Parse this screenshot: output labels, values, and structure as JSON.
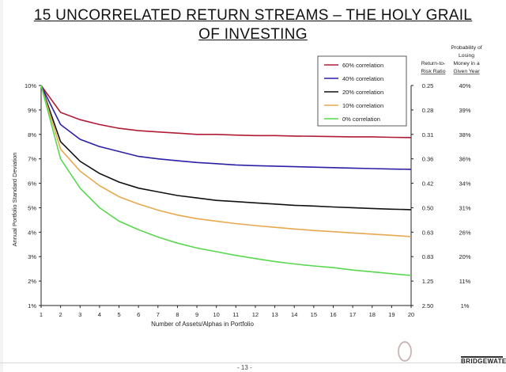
{
  "title_line1": "15 UNCORRELATED RETURN STREAMS – THE HOLY GRAIL",
  "title_line2": "OF INVESTING",
  "footer": {
    "page": "- 13 -",
    "logo": "BRIDGEWATER"
  },
  "colors": {
    "60": "#b01c35",
    "40": "#2c1fa8",
    "20": "#111111",
    "10": "#e7a84f",
    "0": "#59d84f"
  },
  "right_headers": {
    "ratio": [
      "Return-to-",
      "Risk Ratio"
    ],
    "prob": [
      "Probability of",
      "Losing",
      "Money in a",
      "Given Year"
    ]
  },
  "chart_data": {
    "type": "line",
    "xlabel": "Number of Assets/Alphas in Portfolio",
    "ylabel": "Annual Portfolio Standard Deviation",
    "xlim": [
      1,
      20
    ],
    "ylim": [
      1,
      10
    ],
    "x": [
      1,
      2,
      3,
      4,
      5,
      6,
      7,
      8,
      9,
      10,
      11,
      12,
      13,
      14,
      15,
      16,
      17,
      18,
      19,
      20
    ],
    "y_ticks": [
      "1%",
      "2%",
      "3%",
      "4%",
      "5%",
      "6%",
      "7%",
      "8%",
      "9%",
      "10%"
    ],
    "series": [
      {
        "name": "60% correlation",
        "color": "#b01c35",
        "values": [
          10,
          8.9,
          8.6,
          8.4,
          8.25,
          8.15,
          8.1,
          8.05,
          8.0,
          8.0,
          7.97,
          7.95,
          7.95,
          7.93,
          7.92,
          7.91,
          7.9,
          7.9,
          7.88,
          7.87
        ]
      },
      {
        "name": "40% correlation",
        "color": "#2c1fa8",
        "values": [
          10,
          8.4,
          7.8,
          7.5,
          7.3,
          7.1,
          7.0,
          6.92,
          6.85,
          6.8,
          6.75,
          6.72,
          6.7,
          6.68,
          6.66,
          6.64,
          6.62,
          6.6,
          6.58,
          6.57
        ]
      },
      {
        "name": "20% correlation",
        "color": "#111111",
        "values": [
          10,
          7.7,
          6.9,
          6.4,
          6.05,
          5.8,
          5.65,
          5.5,
          5.4,
          5.3,
          5.25,
          5.2,
          5.15,
          5.1,
          5.07,
          5.03,
          5.0,
          4.97,
          4.94,
          4.92
        ]
      },
      {
        "name": "10% correlation",
        "color": "#e7a84f",
        "values": [
          10,
          7.4,
          6.5,
          5.9,
          5.45,
          5.15,
          4.9,
          4.7,
          4.55,
          4.45,
          4.35,
          4.27,
          4.2,
          4.13,
          4.07,
          4.02,
          3.97,
          3.92,
          3.87,
          3.82
        ]
      },
      {
        "name": "0% correlation",
        "color": "#59d84f",
        "values": [
          10,
          7.0,
          5.8,
          5.0,
          4.45,
          4.1,
          3.8,
          3.55,
          3.35,
          3.2,
          3.05,
          2.92,
          2.8,
          2.7,
          2.62,
          2.55,
          2.45,
          2.38,
          2.3,
          2.23
        ]
      }
    ],
    "right_axis": {
      "ratio_labels": [
        "2.50",
        "1.25",
        "0.83",
        "0.63",
        "0.50",
        "0.42",
        "0.36",
        "0.31",
        "0.28",
        "0.25"
      ],
      "prob_labels": [
        "1%",
        "11%",
        "20%",
        "26%",
        "31%",
        "34%",
        "36%",
        "38%",
        "39%",
        "40%"
      ]
    },
    "legend": "top-right"
  }
}
